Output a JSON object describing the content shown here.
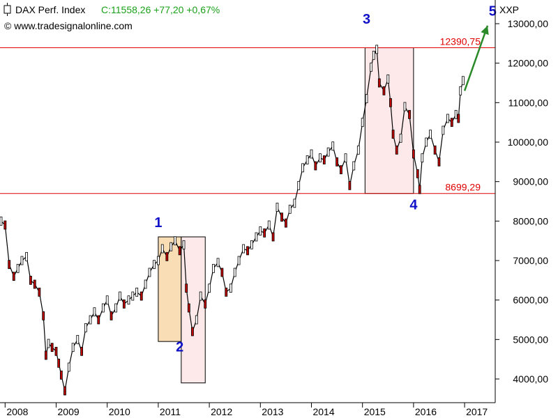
{
  "header": {
    "instrument": "DAX Perf. Index",
    "quote": "C:11558,26 +77,20 +0,67%",
    "source": "© www.tradesignalonline.com",
    "currency": "XXP"
  },
  "colors": {
    "quote": "#1aa01a",
    "level_line": "#e00000",
    "wave_label": "#1010c8",
    "arrow": "#2a8a2a",
    "box_orange": "#f8d8a8",
    "box_pink": "#fde4e4"
  },
  "chart_data": {
    "type": "line",
    "xlabel": "",
    "ylabel": "",
    "x_ticks": [
      "2008",
      "2009",
      "2010",
      "2011",
      "2012",
      "2013",
      "2014",
      "2015",
      "2016",
      "2017"
    ],
    "y_ticks": [
      "4000,00",
      "5000,00",
      "6000,00",
      "7000,00",
      "8000,00",
      "9000,00",
      "10000,00",
      "11000,00",
      "12000,00",
      "13000,00"
    ],
    "xlim": [
      2007.9,
      2017.6
    ],
    "ylim": [
      3400,
      13600
    ],
    "series": [
      {
        "points": [
          [
            2007.92,
            8000
          ],
          [
            2008.0,
            7900
          ],
          [
            2008.08,
            6900
          ],
          [
            2008.17,
            6600
          ],
          [
            2008.25,
            6800
          ],
          [
            2008.33,
            7000
          ],
          [
            2008.42,
            7100
          ],
          [
            2008.5,
            6500
          ],
          [
            2008.58,
            6400
          ],
          [
            2008.67,
            6200
          ],
          [
            2008.75,
            5600
          ],
          [
            2008.8,
            4600
          ],
          [
            2008.85,
            4900
          ],
          [
            2008.92,
            4800
          ],
          [
            2009.0,
            4700
          ],
          [
            2009.05,
            4400
          ],
          [
            2009.1,
            4100
          ],
          [
            2009.17,
            3700
          ],
          [
            2009.25,
            4300
          ],
          [
            2009.33,
            4800
          ],
          [
            2009.42,
            5000
          ],
          [
            2009.5,
            4700
          ],
          [
            2009.58,
            5300
          ],
          [
            2009.67,
            5500
          ],
          [
            2009.75,
            5700
          ],
          [
            2009.83,
            5500
          ],
          [
            2009.92,
            5800
          ],
          [
            2010.0,
            6000
          ],
          [
            2010.08,
            5600
          ],
          [
            2010.17,
            5800
          ],
          [
            2010.25,
            6100
          ],
          [
            2010.33,
            5900
          ],
          [
            2010.42,
            6000
          ],
          [
            2010.5,
            6100
          ],
          [
            2010.58,
            6200
          ],
          [
            2010.67,
            6100
          ],
          [
            2010.75,
            6400
          ],
          [
            2010.83,
            6700
          ],
          [
            2010.92,
            6900
          ],
          [
            2011.0,
            7000
          ],
          [
            2011.08,
            7300
          ],
          [
            2011.17,
            7100
          ],
          [
            2011.25,
            7350
          ],
          [
            2011.33,
            7500
          ],
          [
            2011.42,
            7250
          ],
          [
            2011.5,
            7400
          ],
          [
            2011.55,
            6300
          ],
          [
            2011.6,
            5800
          ],
          [
            2011.67,
            5200
          ],
          [
            2011.75,
            5500
          ],
          [
            2011.83,
            6100
          ],
          [
            2011.92,
            5900
          ],
          [
            2012.0,
            6300
          ],
          [
            2012.08,
            6800
          ],
          [
            2012.17,
            6950
          ],
          [
            2012.25,
            6700
          ],
          [
            2012.33,
            6200
          ],
          [
            2012.42,
            6300
          ],
          [
            2012.5,
            6700
          ],
          [
            2012.58,
            7000
          ],
          [
            2012.67,
            7300
          ],
          [
            2012.75,
            7250
          ],
          [
            2012.83,
            7400
          ],
          [
            2012.92,
            7600
          ],
          [
            2013.0,
            7750
          ],
          [
            2013.08,
            7700
          ],
          [
            2013.17,
            7900
          ],
          [
            2013.25,
            7600
          ],
          [
            2013.33,
            8350
          ],
          [
            2013.42,
            8100
          ],
          [
            2013.5,
            7950
          ],
          [
            2013.58,
            8300
          ],
          [
            2013.67,
            8450
          ],
          [
            2013.75,
            8900
          ],
          [
            2013.83,
            9350
          ],
          [
            2013.92,
            9550
          ],
          [
            2014.0,
            9700
          ],
          [
            2014.08,
            9400
          ],
          [
            2014.17,
            9600
          ],
          [
            2014.25,
            9550
          ],
          [
            2014.33,
            9750
          ],
          [
            2014.42,
            9900
          ],
          [
            2014.5,
            9500
          ],
          [
            2014.58,
            9300
          ],
          [
            2014.67,
            9600
          ],
          [
            2014.75,
            8900
          ],
          [
            2014.83,
            9400
          ],
          [
            2014.92,
            9800
          ],
          [
            2015.0,
            10500
          ],
          [
            2015.08,
            11100
          ],
          [
            2015.17,
            11900
          ],
          [
            2015.22,
            12200
          ],
          [
            2015.28,
            12350
          ],
          [
            2015.33,
            11500
          ],
          [
            2015.42,
            11300
          ],
          [
            2015.5,
            11600
          ],
          [
            2015.55,
            11000
          ],
          [
            2015.6,
            10200
          ],
          [
            2015.67,
            9800
          ],
          [
            2015.75,
            10100
          ],
          [
            2015.83,
            10900
          ],
          [
            2015.92,
            10700
          ],
          [
            2016.0,
            9700
          ],
          [
            2016.08,
            9200
          ],
          [
            2016.12,
            8800
          ],
          [
            2016.17,
            9600
          ],
          [
            2016.25,
            10000
          ],
          [
            2016.33,
            10200
          ],
          [
            2016.42,
            9800
          ],
          [
            2016.5,
            9500
          ],
          [
            2016.58,
            10300
          ],
          [
            2016.67,
            10600
          ],
          [
            2016.75,
            10500
          ],
          [
            2016.83,
            10700
          ],
          [
            2016.88,
            10600
          ],
          [
            2016.92,
            11300
          ],
          [
            2016.97,
            11558
          ]
        ]
      }
    ],
    "levels": [
      {
        "label": "12390,75",
        "value": 12390.75
      },
      {
        "label": "8699,29",
        "value": 8699.29
      }
    ],
    "boxes": [
      {
        "from": 2011.0,
        "to": 2011.45,
        "low": 4950,
        "high": 7600,
        "color": "orange"
      },
      {
        "from": 2011.45,
        "to": 2011.92,
        "low": 3900,
        "high": 7600,
        "color": "pink"
      },
      {
        "from": 2015.05,
        "to": 2016.0,
        "low": 8700,
        "high": 12390,
        "color": "pink"
      }
    ],
    "wave_labels": [
      {
        "label": "1",
        "x": 2011.0,
        "y": 7850
      },
      {
        "label": "2",
        "x": 2011.42,
        "y": 4700
      },
      {
        "label": "3",
        "x": 2015.08,
        "y": 13000
      },
      {
        "label": "4",
        "x": 2016.0,
        "y": 8300
      },
      {
        "label": "5",
        "x": 2017.55,
        "y": 13200
      }
    ],
    "arrow": {
      "from": [
        2017.0,
        11300
      ],
      "to": [
        2017.45,
        12950
      ]
    }
  }
}
